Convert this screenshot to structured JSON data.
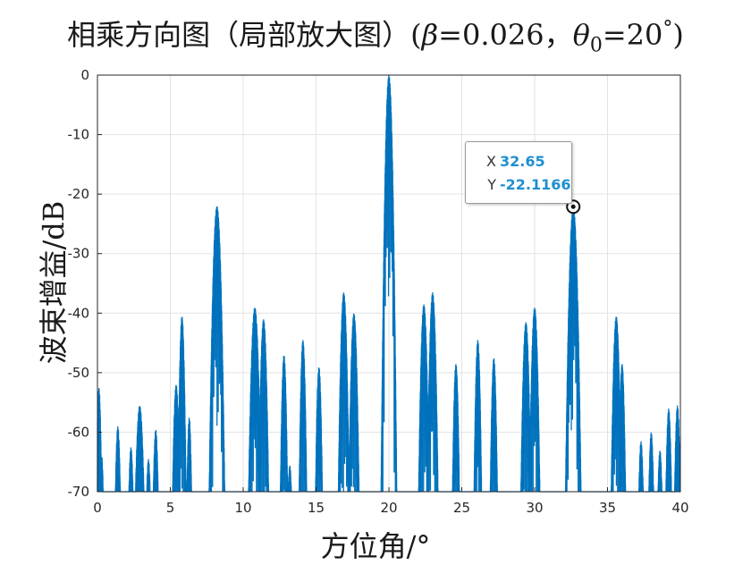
{
  "title": {
    "text": "相乘方向图（局部放大图）(",
    "beta_symbol": "β",
    "beta_eq": "=0.026，",
    "theta_symbol": "θ",
    "theta_sub": "0",
    "theta_eq": "=20",
    "degree_mark": "°",
    "close": ")"
  },
  "chart_data": {
    "type": "line",
    "xlabel": "方位角/°",
    "ylabel": "波束增益/dB",
    "xlim": [
      0,
      40
    ],
    "ylim": [
      -70,
      0
    ],
    "xticks": [
      0,
      5,
      10,
      15,
      20,
      25,
      30,
      35,
      40
    ],
    "yticks": [
      0,
      -10,
      -20,
      -30,
      -40,
      -50,
      -60,
      -70
    ],
    "grid": true,
    "series_color": "#0072BD",
    "lobes": [
      {
        "center": 0.1,
        "width": 0.35,
        "peak": -52.5
      },
      {
        "center": 0.3,
        "width": 0.3,
        "peak": -64.0
      },
      {
        "center": 1.4,
        "width": 0.4,
        "peak": -59.0
      },
      {
        "center": 2.3,
        "width": 0.4,
        "peak": -62.5
      },
      {
        "center": 2.9,
        "width": 0.6,
        "peak": -55.5
      },
      {
        "center": 3.5,
        "width": 0.4,
        "peak": -64.5
      },
      {
        "center": 4.0,
        "width": 0.4,
        "peak": -59.5
      },
      {
        "center": 5.4,
        "width": 0.45,
        "peak": -52.0
      },
      {
        "center": 5.8,
        "width": 0.4,
        "peak": -40.5
      },
      {
        "center": 6.3,
        "width": 0.35,
        "peak": -57.5
      },
      {
        "center": 8.2,
        "width": 0.6,
        "peak": -22.0
      },
      {
        "center": 10.8,
        "width": 0.6,
        "peak": -39.0
      },
      {
        "center": 11.4,
        "width": 0.5,
        "peak": -41.0
      },
      {
        "center": 12.8,
        "width": 0.4,
        "peak": -47.0
      },
      {
        "center": 13.2,
        "width": 0.4,
        "peak": -65.5
      },
      {
        "center": 14.1,
        "width": 0.4,
        "peak": -44.5
      },
      {
        "center": 15.2,
        "width": 0.4,
        "peak": -49.0
      },
      {
        "center": 16.9,
        "width": 0.5,
        "peak": -36.5
      },
      {
        "center": 17.6,
        "width": 0.5,
        "peak": -40.0
      },
      {
        "center": 20.0,
        "width": 0.5,
        "peak": 0.0
      },
      {
        "center": 22.4,
        "width": 0.5,
        "peak": -38.5
      },
      {
        "center": 23.0,
        "width": 0.5,
        "peak": -36.5
      },
      {
        "center": 24.6,
        "width": 0.4,
        "peak": -48.5
      },
      {
        "center": 26.1,
        "width": 0.4,
        "peak": -44.5
      },
      {
        "center": 27.2,
        "width": 0.4,
        "peak": -47.5
      },
      {
        "center": 29.4,
        "width": 0.5,
        "peak": -41.5
      },
      {
        "center": 30.0,
        "width": 0.5,
        "peak": -39.0
      },
      {
        "center": 32.65,
        "width": 0.6,
        "peak": -22.1166
      },
      {
        "center": 35.6,
        "width": 0.5,
        "peak": -40.5
      },
      {
        "center": 36.0,
        "width": 0.4,
        "peak": -48.5
      },
      {
        "center": 37.3,
        "width": 0.4,
        "peak": -61.5
      },
      {
        "center": 38.0,
        "width": 0.4,
        "peak": -60.0
      },
      {
        "center": 38.6,
        "width": 0.4,
        "peak": -63.0
      },
      {
        "center": 39.2,
        "width": 0.4,
        "peak": -56.0
      },
      {
        "center": 39.8,
        "width": 0.4,
        "peak": -55.5
      }
    ],
    "datatip": {
      "x_key": "X",
      "x_value": "32.65",
      "y_key": "Y",
      "y_value": "-22.1166",
      "x": 32.65,
      "y": -22.1166
    }
  }
}
